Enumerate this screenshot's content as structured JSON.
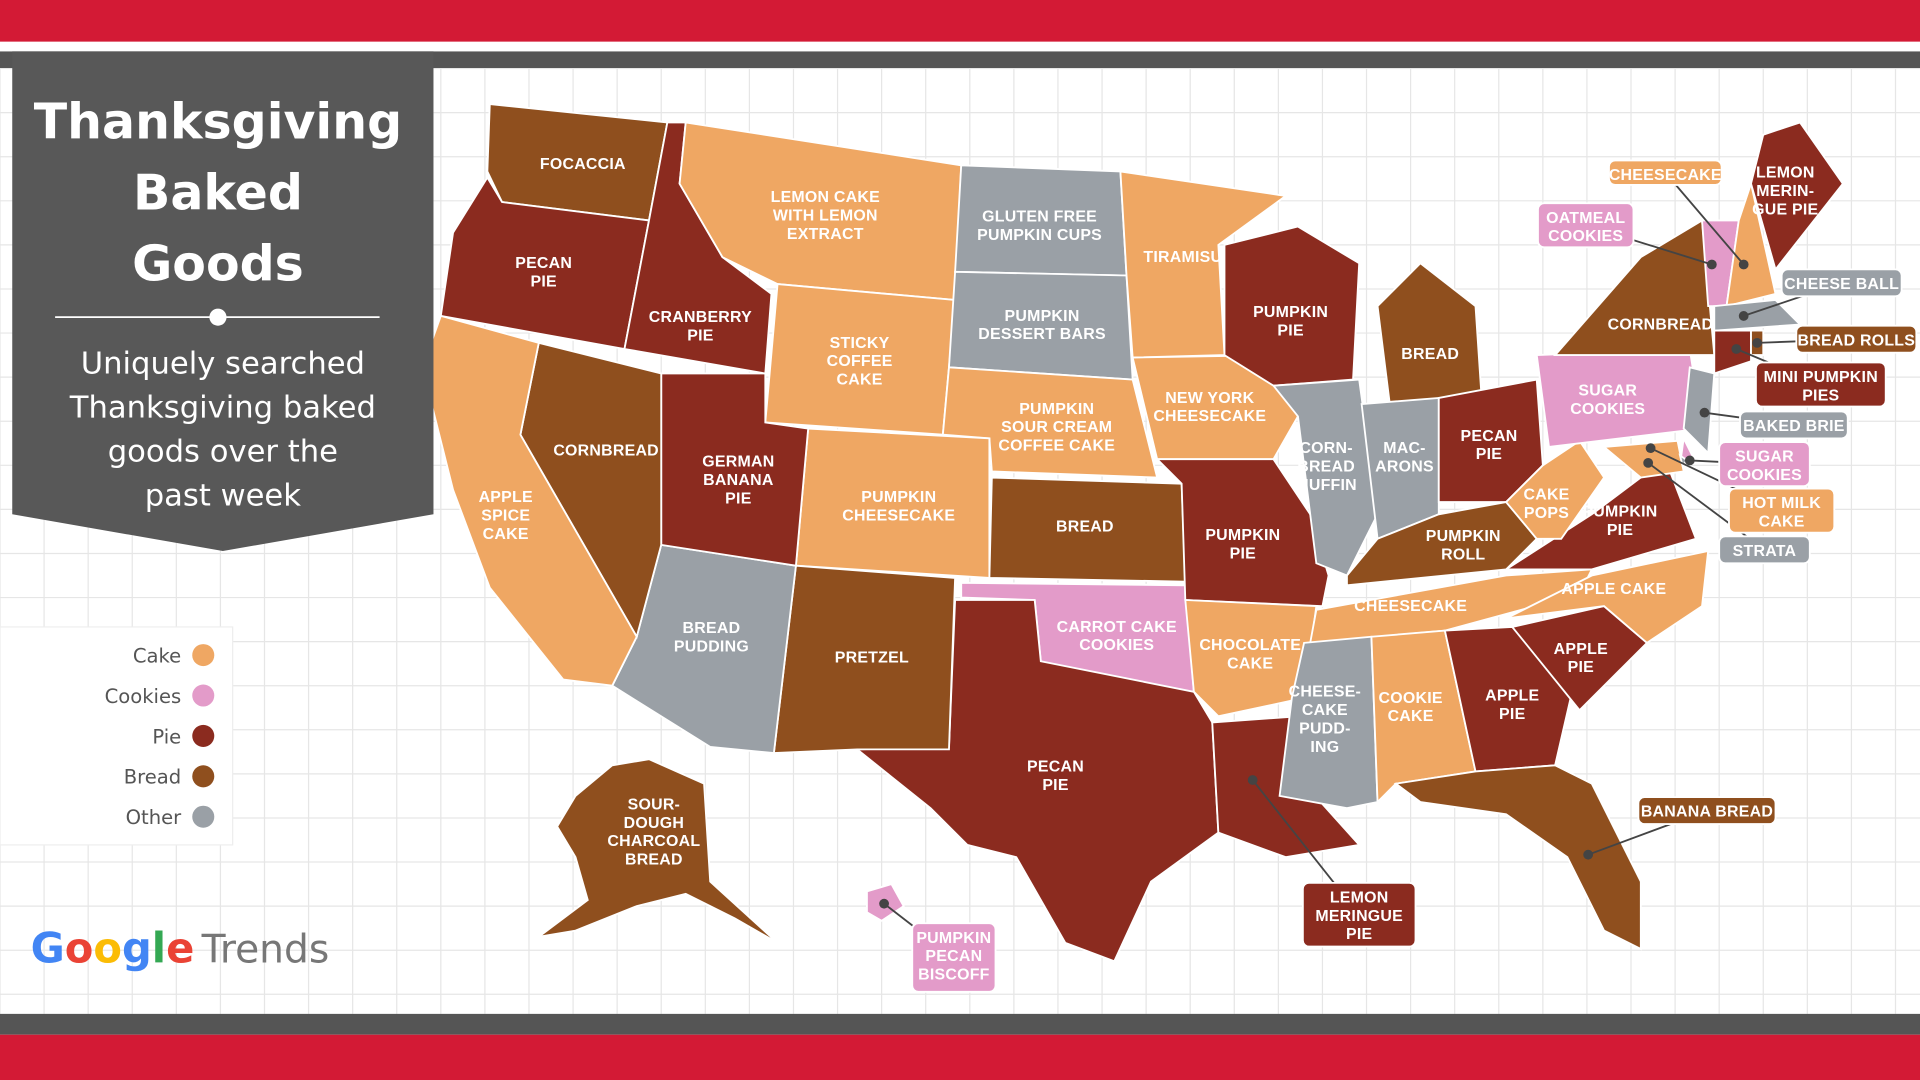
{
  "title": [
    "Thanksgiving",
    "Baked",
    "Goods"
  ],
  "subtitle": [
    "Uniquely searched",
    "Thanksgiving baked",
    "goods over the",
    "past week"
  ],
  "legend": [
    {
      "label": "Cake",
      "category": "cake"
    },
    {
      "label": "Cookies",
      "category": "cookies"
    },
    {
      "label": "Pie",
      "category": "pie"
    },
    {
      "label": "Bread",
      "category": "bread"
    },
    {
      "label": "Other",
      "category": "other"
    }
  ],
  "colors": {
    "cake": "#EFA763",
    "cookies": "#E39BC9",
    "pie": "#8B2B1F",
    "bread": "#8F4F1E",
    "other": "#9AA0A6",
    "frame_red": "#D31A35",
    "frame_gray": "#555555"
  },
  "logo": {
    "google": "Google",
    "trends": "Trends"
  },
  "states": [
    {
      "label": [
        "FOCACCIA"
      ],
      "category": "bread"
    },
    {
      "label": [
        "PECAN",
        "PIE"
      ],
      "category": "pie"
    },
    {
      "label": [
        "CRANBERRY",
        "PIE"
      ],
      "category": "pie"
    },
    {
      "label": [
        "LEMON CAKE",
        "WITH LEMON",
        "EXTRACT"
      ],
      "category": "cake"
    },
    {
      "label": [
        "STICKY",
        "COFFEE",
        "CAKE"
      ],
      "category": "cake"
    },
    {
      "label": [
        "GLUTEN FREE",
        "PUMPKIN CUPS"
      ],
      "category": "other"
    },
    {
      "label": [
        "PUMPKIN",
        "DESSERT BARS"
      ],
      "category": "other"
    },
    {
      "label": [
        "PUMPKIN",
        "SOUR CREAM",
        "COFFEE CAKE"
      ],
      "category": "cake"
    },
    {
      "label": [
        "PUMPKIN",
        "CHEESECAKE"
      ],
      "category": "cake"
    },
    {
      "label": [
        "BREAD"
      ],
      "category": "bread"
    },
    {
      "label": [
        "CARROT CAKE",
        "COOKIES"
      ],
      "category": "cookies"
    },
    {
      "label": [
        "PECAN",
        "PIE"
      ],
      "category": "pie"
    },
    {
      "label": [
        "PRETZEL"
      ],
      "category": "bread"
    },
    {
      "label": [
        "BREAD",
        "PUDDING"
      ],
      "category": "other"
    },
    {
      "label": [
        "GERMAN",
        "BANANA",
        "PIE"
      ],
      "category": "pie"
    },
    {
      "label": [
        "CORNBREAD"
      ],
      "category": "bread"
    },
    {
      "label": [
        "APPLE",
        "SPICE",
        "CAKE"
      ],
      "category": "cake"
    },
    {
      "label": [
        "TIRAMISU"
      ],
      "category": "cake"
    },
    {
      "label": [
        "NEW YORK",
        "CHEESECAKE"
      ],
      "category": "cake"
    },
    {
      "label": [
        "PUMPKIN",
        "PIE"
      ],
      "category": "pie"
    },
    {
      "label": [
        "CHOCOLATE",
        "CAKE"
      ],
      "category": "cake"
    },
    {
      "label": [
        "LEMON",
        "MERINGUE",
        "PIE"
      ],
      "category": "pie"
    },
    {
      "label": [
        "PUMPKIN",
        "PIE"
      ],
      "category": "pie"
    },
    {
      "label": [
        "CORN-",
        "BREAD",
        "MUFFIN"
      ],
      "category": "other"
    },
    {
      "label": [
        "BREAD"
      ],
      "category": "bread"
    },
    {
      "label": [
        "MAC-",
        "ARONS"
      ],
      "category": "other"
    },
    {
      "label": [
        "PECAN",
        "PIE"
      ],
      "category": "pie"
    },
    {
      "label": [
        "PUMPKIN",
        "ROLL"
      ],
      "category": "bread"
    },
    {
      "label": [
        "CHEESECAKE"
      ],
      "category": "cake"
    },
    {
      "label": [
        "CHEESE-",
        "CAKE",
        "PUDD-",
        "ING"
      ],
      "category": "other"
    },
    {
      "label": [
        "COOKIE",
        "CAKE"
      ],
      "category": "cake"
    },
    {
      "label": [
        "APPLE",
        "PIE"
      ],
      "category": "pie"
    },
    {
      "label": [
        "BANANA BREAD"
      ],
      "category": "bread"
    },
    {
      "label": [
        "APPLE",
        "PIE"
      ],
      "category": "pie"
    },
    {
      "label": [
        "APPLE CAKE"
      ],
      "category": "cake"
    },
    {
      "label": [
        "PUMPKIN",
        "PIE"
      ],
      "category": "pie"
    },
    {
      "label": [
        "CAKE",
        "POPS"
      ],
      "category": "cake"
    },
    {
      "label": [
        "SUGAR",
        "COOKIES"
      ],
      "category": "cookies"
    },
    {
      "label": [
        "CORNBREAD"
      ],
      "category": "bread"
    },
    {
      "label": [
        "OATMEAL",
        "COOKIES"
      ],
      "category": "cookies"
    },
    {
      "label": [
        "CHEESECAKE"
      ],
      "category": "cake"
    },
    {
      "label": [
        "LEMON",
        "MERIN-",
        "GUE PIE"
      ],
      "category": "pie"
    },
    {
      "label": [
        "CHEESE BALL"
      ],
      "category": "other"
    },
    {
      "label": [
        "MINI PUMPKIN",
        "PIES"
      ],
      "category": "pie"
    },
    {
      "label": [
        "BREAD ROLLS"
      ],
      "category": "bread"
    },
    {
      "label": [
        "BAKED BRIE"
      ],
      "category": "other"
    },
    {
      "label": [
        "SUGAR",
        "COOKIES"
      ],
      "category": "cookies"
    },
    {
      "label": [
        "HOT MILK",
        "CAKE"
      ],
      "category": "cake"
    },
    {
      "label": [
        "STRATA"
      ],
      "category": "other"
    },
    {
      "label": [
        "SOUR-",
        "DOUGH",
        "CHARCOAL",
        "BREAD"
      ],
      "category": "bread"
    },
    {
      "label": [
        "PUMPKIN",
        "PECAN",
        "BISCOFF"
      ],
      "category": "cookies"
    }
  ]
}
